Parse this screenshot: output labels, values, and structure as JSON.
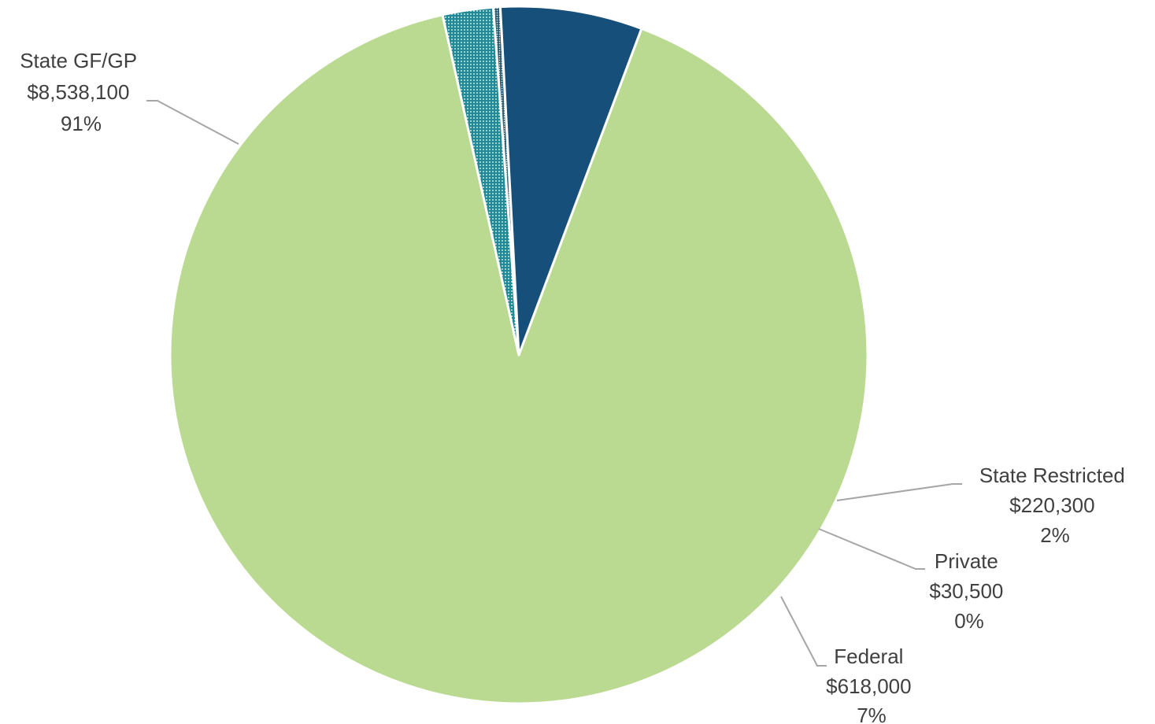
{
  "chart_data": {
    "type": "pie",
    "title": "",
    "slices": [
      {
        "label": "State GF/GP",
        "amount": "$8,538,100",
        "percent": "91%",
        "value": 8538100,
        "color": "#BBDA91",
        "pattern": "solid"
      },
      {
        "label": "State Restricted",
        "amount": "$220,300",
        "percent": "2%",
        "value": 220300,
        "color": "#1F8A93",
        "pattern": "dotted"
      },
      {
        "label": "Private",
        "amount": "$30,500",
        "percent": "0%",
        "value": 30500,
        "color": "#2E5E73",
        "pattern": "dotted"
      },
      {
        "label": "Federal",
        "amount": "$618,000",
        "percent": "7%",
        "value": 618000,
        "color": "#16507A",
        "pattern": "solid"
      }
    ]
  }
}
